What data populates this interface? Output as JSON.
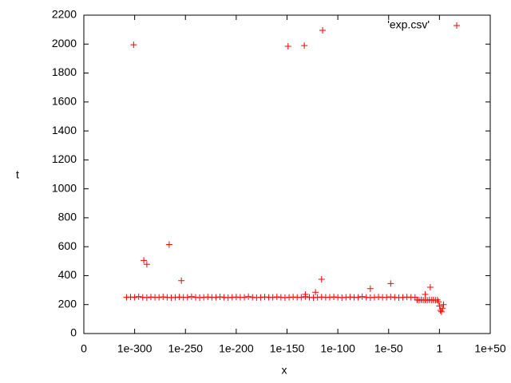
{
  "chart_data": {
    "type": "scatter",
    "xlabel": "x",
    "ylabel": "t",
    "xlog": true,
    "xlim": [
      0,
      1e+50
    ],
    "xticks": [
      {
        "value": 0,
        "label": "0"
      },
      {
        "value": 1e-300,
        "label": "1e-300"
      },
      {
        "value": 1e-250,
        "label": "1e-250"
      },
      {
        "value": 1e-200,
        "label": "1e-200"
      },
      {
        "value": 1e-150,
        "label": "1e-150"
      },
      {
        "value": 1e-100,
        "label": "1e-100"
      },
      {
        "value": 1e-50,
        "label": "1e-50"
      },
      1,
      {
        "value": 1e+50,
        "label": "1e+50"
      }
    ],
    "ylim": [
      0,
      2200
    ],
    "yticks": [
      0,
      200,
      400,
      600,
      800,
      1000,
      1200,
      1400,
      1600,
      1800,
      2000,
      2200
    ],
    "legend": "top-right",
    "series": [
      {
        "name": "'exp.csv'",
        "color": "#ff0000",
        "x": [
          1e-308,
          1e-304,
          1e-300,
          1e-296,
          1e-292,
          1e-288,
          1e-284,
          1e-280,
          1e-276,
          1e-272,
          1e-268,
          1e-264,
          1e-260,
          1e-256,
          1e-252,
          1e-248,
          1e-244,
          1e-240,
          1e-236,
          1e-232,
          1e-228,
          1e-224,
          1e-220,
          1e-216,
          1e-212,
          1e-208,
          1e-204,
          1e-200,
          1e-196,
          1e-192,
          1e-188,
          1e-184,
          1e-180,
          1e-176,
          1e-172,
          1e-168,
          1e-164,
          1e-160,
          1e-156,
          1e-152,
          1e-148,
          1e-144,
          1e-140,
          1e-136,
          1e-132,
          1e-128,
          1e-124,
          1e-120,
          1e-116,
          1e-112,
          1e-108,
          1e-104,
          1e-100,
          1e-96,
          1e-92,
          1e-88,
          1e-84,
          1e-80,
          1e-76,
          1e-72,
          1e-68,
          1e-64,
          1e-60,
          1e-56,
          1e-52,
          1e-48,
          1e-44,
          1e-40,
          1e-36,
          1e-32,
          1e-28,
          1e-24,
          1e-22,
          1e-20,
          1e-18,
          1e-16,
          1e-14,
          1e-12,
          1e-10,
          1e-08,
          1e-06,
          0.0001,
          0.01,
          0.1,
          1,
          10,
          100,
          1000,
          10000,
          1e-301,
          1e-291,
          1e-288,
          1e-266,
          1e-254,
          1e-149,
          1e-133,
          1e-115,
          1e-116,
          1e-132,
          1e-122,
          1e-68,
          1e-48,
          1e-09,
          1e-14
        ],
        "values": [
          250,
          252,
          250,
          255,
          250,
          248,
          252,
          250,
          250,
          253,
          250,
          248,
          250,
          252,
          250,
          250,
          255,
          250,
          248,
          250,
          252,
          250,
          250,
          253,
          250,
          248,
          250,
          252,
          250,
          250,
          255,
          250,
          248,
          250,
          252,
          250,
          250,
          253,
          250,
          248,
          250,
          252,
          250,
          250,
          255,
          250,
          248,
          250,
          252,
          250,
          250,
          253,
          250,
          248,
          250,
          252,
          250,
          250,
          255,
          250,
          248,
          250,
          252,
          250,
          250,
          253,
          250,
          248,
          250,
          252,
          250,
          250,
          232,
          230,
          233,
          231,
          232,
          230,
          233,
          231,
          232,
          230,
          232,
          220,
          190,
          160,
          150,
          175,
          200,
          1995,
          505,
          478,
          615,
          365,
          1985,
          1990,
          2095,
          375,
          270,
          285,
          310,
          345,
          320,
          270
        ]
      }
    ]
  }
}
